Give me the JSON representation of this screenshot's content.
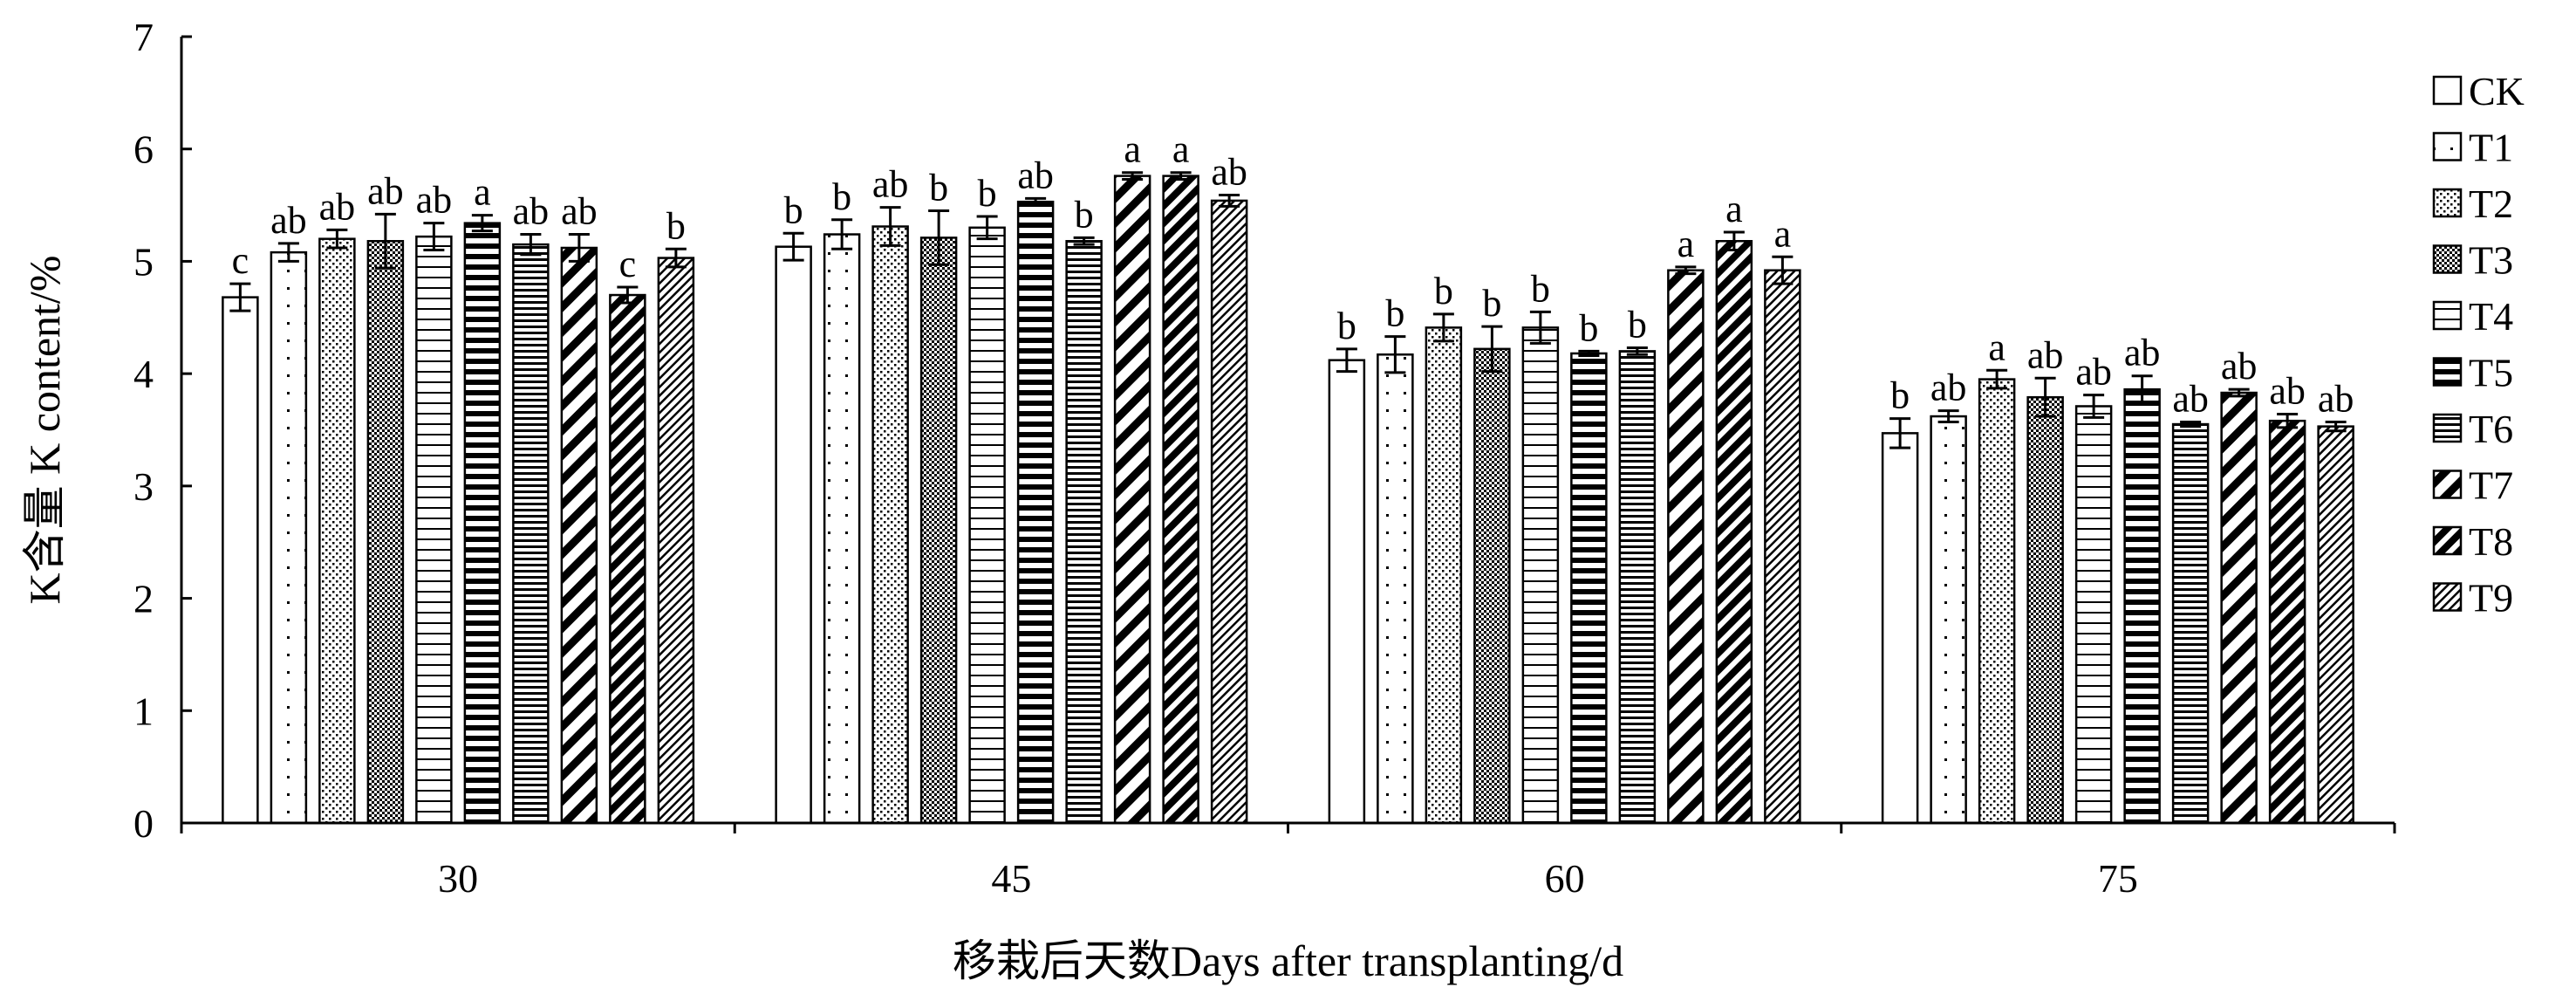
{
  "chart_data": {
    "type": "bar",
    "ylabel": "K含量  K content/%",
    "xlabel": "移栽后天数Days after transplanting/d",
    "ylim": [
      0,
      7
    ],
    "yticks": [
      "0",
      "1",
      "2",
      "3",
      "4",
      "5",
      "6",
      "7"
    ],
    "categories": [
      "30",
      "45",
      "60",
      "75"
    ],
    "grid": false,
    "legend_position": "right",
    "series": [
      {
        "name": "CK",
        "pattern": "blank",
        "values": [
          4.68,
          5.13,
          4.12,
          3.47
        ],
        "errors": [
          0.12,
          0.12,
          0.1,
          0.13
        ],
        "labels": [
          "c",
          "b",
          "b",
          "b"
        ]
      },
      {
        "name": "T1",
        "pattern": "dots-sparse",
        "values": [
          5.08,
          5.24,
          4.17,
          3.62
        ],
        "errors": [
          0.08,
          0.13,
          0.16,
          0.05
        ],
        "labels": [
          "ab",
          "b",
          "b",
          "ab"
        ]
      },
      {
        "name": "T2",
        "pattern": "dots-dense",
        "values": [
          5.2,
          5.31,
          4.41,
          3.95
        ],
        "errors": [
          0.08,
          0.17,
          0.12,
          0.08
        ],
        "labels": [
          "ab",
          "ab",
          "b",
          "a"
        ]
      },
      {
        "name": "T3",
        "pattern": "dots-checker",
        "values": [
          5.18,
          5.21,
          4.22,
          3.79
        ],
        "errors": [
          0.24,
          0.24,
          0.2,
          0.17
        ],
        "labels": [
          "ab",
          "b",
          "b",
          "ab"
        ]
      },
      {
        "name": "T4",
        "pattern": "hlines-wide",
        "values": [
          5.22,
          5.3,
          4.41,
          3.71
        ],
        "errors": [
          0.12,
          0.1,
          0.14,
          0.1
        ],
        "labels": [
          "ab",
          "b",
          "b",
          "ab"
        ]
      },
      {
        "name": "T5",
        "pattern": "hlines-thick",
        "values": [
          5.34,
          5.53,
          4.18,
          3.86
        ],
        "errors": [
          0.07,
          0.03,
          0.02,
          0.12
        ],
        "labels": [
          "a",
          "ab",
          "b",
          "ab"
        ]
      },
      {
        "name": "T6",
        "pattern": "hlines-narrow",
        "values": [
          5.15,
          5.18,
          4.2,
          3.55
        ],
        "errors": [
          0.09,
          0.03,
          0.03,
          0.02
        ],
        "labels": [
          "ab",
          "b",
          "b",
          "ab"
        ]
      },
      {
        "name": "T7",
        "pattern": "diag-wide",
        "values": [
          5.12,
          5.76,
          4.92,
          3.83
        ],
        "errors": [
          0.12,
          0.03,
          0.03,
          0.03
        ],
        "labels": [
          "ab",
          "a",
          "a",
          "ab"
        ]
      },
      {
        "name": "T8",
        "pattern": "diag-dense",
        "values": [
          4.7,
          5.76,
          5.18,
          3.58
        ],
        "errors": [
          0.07,
          0.03,
          0.08,
          0.06
        ],
        "labels": [
          "c",
          "a",
          "a",
          "ab"
        ]
      },
      {
        "name": "T9",
        "pattern": "diag-fine",
        "values": [
          5.03,
          5.54,
          4.92,
          3.53
        ],
        "errors": [
          0.08,
          0.05,
          0.12,
          0.04
        ],
        "labels": [
          "b",
          "ab",
          "a",
          "ab"
        ]
      }
    ]
  }
}
